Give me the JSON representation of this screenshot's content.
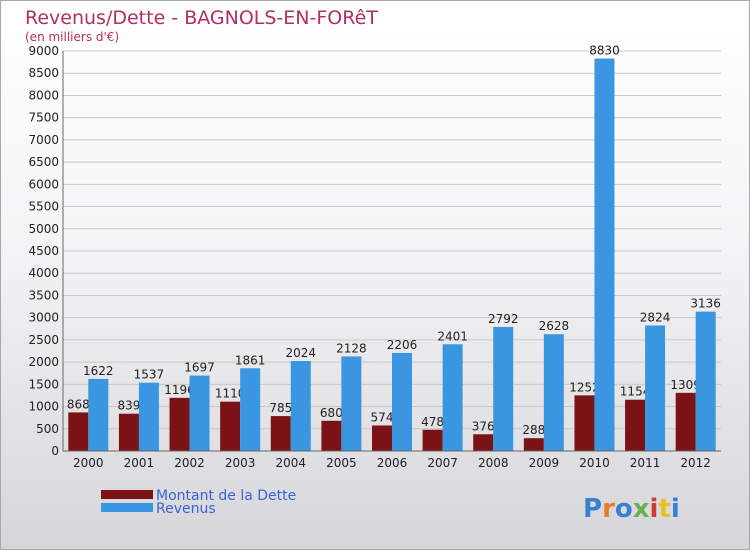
{
  "chart_data": {
    "type": "bar",
    "title": "Revenus/Dette - BAGNOLS-EN-FORêT",
    "subtitle": "(en milliers d'€)",
    "categories": [
      "2000",
      "2001",
      "2002",
      "2003",
      "2004",
      "2005",
      "2006",
      "2007",
      "2008",
      "2009",
      "2010",
      "2011",
      "2012"
    ],
    "series": [
      {
        "name": "Montant de la Dette",
        "color": "#7a1216",
        "values": [
          868,
          839,
          1196,
          1110,
          785,
          680,
          574,
          478,
          376,
          288,
          1252,
          1154,
          1309
        ]
      },
      {
        "name": "Revenus",
        "color": "#3a96e0",
        "values": [
          1622,
          1537,
          1697,
          1861,
          2024,
          2128,
          2206,
          2401,
          2792,
          2628,
          8830,
          2824,
          3136
        ]
      }
    ],
    "ylim": [
      0,
      9000
    ],
    "yticks": [
      0,
      500,
      1000,
      1500,
      2000,
      2500,
      3000,
      3500,
      4000,
      4500,
      5000,
      5500,
      6000,
      6500,
      7000,
      7500,
      8000,
      8500,
      9000
    ],
    "grid": true,
    "legend": "bottom-left"
  },
  "branding": {
    "logo_text": "Proxiti",
    "logo_colors": [
      "#3a7fd0",
      "#e87a20",
      "#3a7fd0",
      "#6ab04c",
      "#d23a3a",
      "#e8c020",
      "#3a7fd0"
    ]
  }
}
